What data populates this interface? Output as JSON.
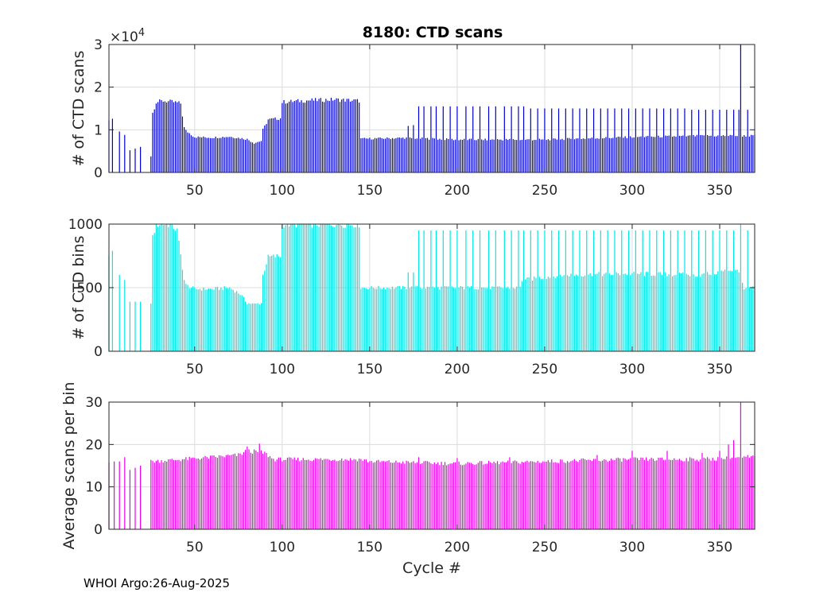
{
  "figure_title": "8180: CTD scans",
  "footer": "WHOI Argo:26-Aug-2025",
  "colors": {
    "scans": "#0000d6",
    "bins": "#00e8e8",
    "avg": "#ee00ee",
    "grid": "#dcdcdc",
    "axis": "#262626"
  },
  "chart_data": [
    {
      "type": "bar",
      "title": "8180: CTD scans",
      "xlabel": "",
      "ylabel": "# of CTD scans",
      "exponent_label": "×10^4",
      "exponent_base": "×10",
      "exponent_power": "4",
      "xlim": [
        1,
        370
      ],
      "ylim": [
        0,
        30000
      ],
      "yticks": [
        0,
        10000,
        20000,
        30000
      ],
      "yticklabels": [
        "0",
        "1",
        "2",
        "3"
      ],
      "xticks": [
        50,
        100,
        150,
        200,
        250,
        300,
        350
      ],
      "xticklabels": [
        "50",
        "100",
        "150",
        "200",
        "250",
        "300",
        "350"
      ],
      "grid": true,
      "series_key": "scans",
      "segments": [
        {
          "from": 1,
          "to": 24,
          "points": [
            [
              1,
              12200
            ],
            [
              3,
              12600
            ],
            [
              7,
              9600
            ],
            [
              10,
              8800
            ],
            [
              13,
              5200
            ],
            [
              16,
              5600
            ],
            [
              19,
              6000
            ]
          ]
        },
        {
          "from": 25,
          "to": 44,
          "profile": [
            [
              25,
              3800
            ],
            [
              26,
              14000
            ],
            [
              28,
              16500
            ],
            [
              32,
              16800
            ],
            [
              38,
              16500
            ],
            [
              42,
              16200
            ],
            [
              44,
              10500
            ]
          ]
        },
        {
          "from": 45,
          "to": 88,
          "profile": [
            [
              45,
              9800
            ],
            [
              50,
              8300
            ],
            [
              60,
              8200
            ],
            [
              70,
              8400
            ],
            [
              80,
              7800
            ],
            [
              84,
              6900
            ],
            [
              88,
              7400
            ]
          ]
        },
        {
          "from": 89,
          "to": 99,
          "profile": [
            [
              89,
              10000
            ],
            [
              92,
              12400
            ],
            [
              99,
              12700
            ]
          ]
        },
        {
          "from": 100,
          "to": 144,
          "profile": [
            [
              100,
              16500
            ],
            [
              115,
              16900
            ],
            [
              130,
              17100
            ],
            [
              144,
              16800
            ]
          ]
        },
        {
          "from": 145,
          "to": 370,
          "profile": [
            [
              145,
              7900
            ],
            [
              170,
              8100
            ],
            [
              200,
              7700
            ],
            [
              250,
              7700
            ],
            [
              300,
              8300
            ],
            [
              345,
              8600
            ],
            [
              370,
              8600
            ]
          ]
        }
      ],
      "spikes": [
        [
          172,
          10900
        ],
        [
          175,
          11100
        ],
        [
          178,
          15500
        ],
        [
          181,
          15500
        ],
        [
          185,
          15500
        ],
        [
          188,
          15500
        ],
        [
          192,
          15500
        ],
        [
          196,
          15500
        ],
        [
          200,
          15500
        ],
        [
          205,
          15500
        ],
        [
          209,
          15500
        ],
        [
          213,
          15500
        ],
        [
          218,
          15500
        ],
        [
          222,
          15500
        ],
        [
          227,
          15500
        ],
        [
          231,
          15500
        ],
        [
          235,
          15500
        ],
        [
          238,
          15500
        ],
        [
          242,
          15000
        ],
        [
          246,
          15000
        ],
        [
          250,
          15000
        ],
        [
          254,
          15000
        ],
        [
          258,
          15000
        ],
        [
          262,
          15000
        ],
        [
          266,
          15000
        ],
        [
          270,
          15000
        ],
        [
          274,
          15000
        ],
        [
          278,
          15000
        ],
        [
          282,
          15000
        ],
        [
          286,
          15000
        ],
        [
          290,
          15000
        ],
        [
          294,
          15000
        ],
        [
          298,
          15000
        ],
        [
          302,
          15000
        ],
        [
          306,
          15000
        ],
        [
          310,
          15000
        ],
        [
          314,
          15000
        ],
        [
          318,
          15000
        ],
        [
          322,
          15000
        ],
        [
          326,
          15000
        ],
        [
          330,
          15000
        ],
        [
          334,
          14700
        ],
        [
          338,
          14700
        ],
        [
          342,
          14700
        ],
        [
          346,
          14700
        ],
        [
          350,
          14700
        ],
        [
          354,
          14700
        ],
        [
          358,
          14700
        ],
        [
          361,
          14700
        ],
        [
          362,
          30000
        ],
        [
          366,
          14700
        ]
      ]
    },
    {
      "type": "bar",
      "title": "",
      "xlabel": "",
      "ylabel": "# of CTD bins",
      "xlim": [
        1,
        370
      ],
      "ylim": [
        0,
        1000
      ],
      "yticks": [
        0,
        500,
        1000
      ],
      "yticklabels": [
        "0",
        "500",
        "1000"
      ],
      "xticks": [
        50,
        100,
        150,
        200,
        250,
        300,
        350
      ],
      "xticklabels": [
        "50",
        "100",
        "150",
        "200",
        "250",
        "300",
        "350"
      ],
      "grid": true,
      "series_key": "bins",
      "segments": [
        {
          "from": 1,
          "to": 24,
          "points": [
            [
              1,
              750
            ],
            [
              3,
              790
            ],
            [
              7,
              600
            ],
            [
              10,
              560
            ],
            [
              13,
              390
            ],
            [
              16,
              390
            ],
            [
              19,
              390
            ]
          ]
        },
        {
          "from": 25,
          "to": 44,
          "profile": [
            [
              25,
              380
            ],
            [
              26,
              900
            ],
            [
              28,
              1000
            ],
            [
              36,
              1000
            ],
            [
              40,
              950
            ],
            [
              44,
              560
            ]
          ]
        },
        {
          "from": 45,
          "to": 88,
          "profile": [
            [
              45,
              520
            ],
            [
              50,
              490
            ],
            [
              60,
              490
            ],
            [
              70,
              500
            ],
            [
              76,
              450
            ],
            [
              80,
              380
            ],
            [
              84,
              370
            ],
            [
              88,
              380
            ]
          ]
        },
        {
          "from": 89,
          "to": 99,
          "profile": [
            [
              89,
              600
            ],
            [
              92,
              740
            ],
            [
              99,
              750
            ]
          ]
        },
        {
          "from": 100,
          "to": 144,
          "profile": [
            [
              100,
              1000
            ],
            [
              144,
              1000
            ]
          ]
        },
        {
          "from": 145,
          "to": 236,
          "profile": [
            [
              145,
              500
            ],
            [
              236,
              500
            ]
          ]
        },
        {
          "from": 237,
          "to": 370,
          "profile": [
            [
              237,
              560
            ],
            [
              260,
              600
            ],
            [
              300,
              610
            ],
            [
              340,
              600
            ],
            [
              360,
              650
            ],
            [
              364,
              500
            ],
            [
              370,
              500
            ]
          ]
        }
      ],
      "spikes": [
        [
          172,
          620
        ],
        [
          175,
          620
        ],
        [
          178,
          950
        ],
        [
          181,
          950
        ],
        [
          185,
          950
        ],
        [
          188,
          950
        ],
        [
          192,
          950
        ],
        [
          196,
          950
        ],
        [
          200,
          950
        ],
        [
          205,
          950
        ],
        [
          209,
          950
        ],
        [
          213,
          950
        ],
        [
          218,
          950
        ],
        [
          222,
          950
        ],
        [
          227,
          950
        ],
        [
          231,
          950
        ],
        [
          235,
          950
        ],
        [
          238,
          950
        ],
        [
          242,
          950
        ],
        [
          246,
          950
        ],
        [
          250,
          950
        ],
        [
          254,
          950
        ],
        [
          258,
          950
        ],
        [
          262,
          950
        ],
        [
          266,
          950
        ],
        [
          270,
          950
        ],
        [
          274,
          950
        ],
        [
          278,
          950
        ],
        [
          282,
          950
        ],
        [
          286,
          950
        ],
        [
          290,
          950
        ],
        [
          294,
          950
        ],
        [
          298,
          950
        ],
        [
          302,
          950
        ],
        [
          306,
          950
        ],
        [
          310,
          950
        ],
        [
          314,
          950
        ],
        [
          318,
          950
        ],
        [
          322,
          950
        ],
        [
          326,
          950
        ],
        [
          330,
          950
        ],
        [
          334,
          950
        ],
        [
          338,
          950
        ],
        [
          342,
          950
        ],
        [
          346,
          950
        ],
        [
          350,
          950
        ],
        [
          354,
          950
        ],
        [
          358,
          950
        ],
        [
          362,
          1000
        ],
        [
          366,
          950
        ]
      ]
    },
    {
      "type": "bar",
      "title": "",
      "xlabel": "Cycle #",
      "ylabel": "Average scans per bin",
      "xlim": [
        1,
        370
      ],
      "ylim": [
        0,
        30
      ],
      "yticks": [
        0,
        10,
        20,
        30
      ],
      "yticklabels": [
        "0",
        "10",
        "20",
        "30"
      ],
      "xticks": [
        50,
        100,
        150,
        200,
        250,
        300,
        350
      ],
      "xticklabels": [
        "50",
        "100",
        "150",
        "200",
        "250",
        "300",
        "350"
      ],
      "grid": true,
      "series_key": "avg",
      "segments": [
        {
          "from": 1,
          "to": 24,
          "points": [
            [
              1,
              15.8
            ],
            [
              4,
              16
            ],
            [
              7,
              16
            ],
            [
              10,
              17
            ],
            [
              13,
              14
            ],
            [
              16,
              14.5
            ],
            [
              19,
              15
            ]
          ]
        },
        {
          "from": 25,
          "to": 370,
          "profile": [
            [
              25,
              16
            ],
            [
              60,
              17
            ],
            [
              75,
              17.5
            ],
            [
              80,
              18.5
            ],
            [
              90,
              18
            ],
            [
              95,
              16.5
            ],
            [
              145,
              16.5
            ],
            [
              150,
              16
            ],
            [
              200,
              15.5
            ],
            [
              250,
              16
            ],
            [
              300,
              16.5
            ],
            [
              340,
              16.5
            ],
            [
              370,
              17
            ]
          ]
        }
      ],
      "spikes": [
        [
          80,
          19.5
        ],
        [
          87,
          20.2
        ],
        [
          178,
          17
        ],
        [
          200,
          16.8
        ],
        [
          230,
          17
        ],
        [
          280,
          17.5
        ],
        [
          300,
          18.5
        ],
        [
          320,
          18.5
        ],
        [
          340,
          18
        ],
        [
          350,
          18.5
        ],
        [
          355,
          20
        ],
        [
          358,
          21
        ],
        [
          362,
          30
        ],
        [
          366,
          17.5
        ]
      ]
    }
  ]
}
